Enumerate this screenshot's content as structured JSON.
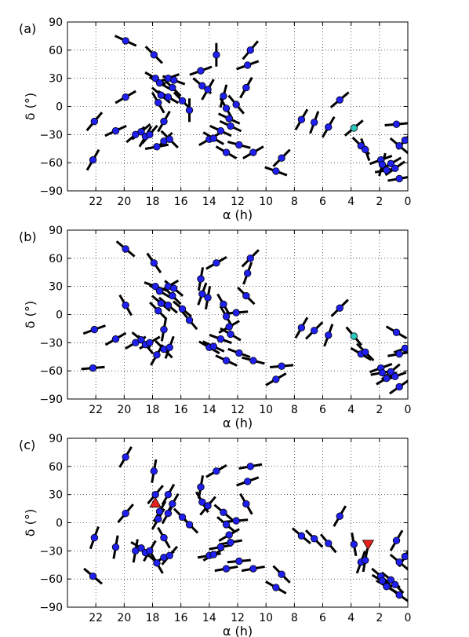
{
  "chart_data": [
    {
      "type": "scatter",
      "panel_label": "(a)",
      "xlabel": "α (h)",
      "ylabel": "δ (°)",
      "xlim": [
        24,
        0
      ],
      "ylim": [
        -90,
        90
      ],
      "xticks": [
        22,
        20,
        18,
        16,
        14,
        12,
        10,
        8,
        6,
        4,
        2,
        0
      ],
      "yticks": [
        90,
        60,
        30,
        0,
        -30,
        -60,
        -90
      ],
      "grid": true,
      "marker_color": "#1f1fef",
      "highlight_color": "#2cc7c0",
      "points": [
        {
          "x": 22.1,
          "y": -16,
          "a": 50
        },
        {
          "x": 22.2,
          "y": -57,
          "a": 60
        },
        {
          "x": 20.6,
          "y": -26,
          "a": 25
        },
        {
          "x": 19.9,
          "y": 70,
          "a": -25
        },
        {
          "x": 19.9,
          "y": 10,
          "a": 30
        },
        {
          "x": 19.2,
          "y": -30,
          "a": 40
        },
        {
          "x": 18.8,
          "y": -27,
          "a": 40
        },
        {
          "x": 18.5,
          "y": -32,
          "a": 60
        },
        {
          "x": 18.2,
          "y": -30,
          "a": 50
        },
        {
          "x": 17.9,
          "y": 55,
          "a": -45
        },
        {
          "x": 17.8,
          "y": 30,
          "a": -30
        },
        {
          "x": 17.6,
          "y": 4,
          "a": -60
        },
        {
          "x": 17.7,
          "y": -43,
          "a": 10
        },
        {
          "x": 17.5,
          "y": 25,
          "a": -30
        },
        {
          "x": 17.4,
          "y": 12,
          "a": -40
        },
        {
          "x": 17.2,
          "y": -37,
          "a": 45
        },
        {
          "x": 17.2,
          "y": -16,
          "a": 60
        },
        {
          "x": 16.9,
          "y": 30,
          "a": 20
        },
        {
          "x": 16.9,
          "y": 10,
          "a": -30
        },
        {
          "x": 16.8,
          "y": -35,
          "a": -45
        },
        {
          "x": 16.6,
          "y": 20,
          "a": -45
        },
        {
          "x": 16.5,
          "y": 28,
          "a": -20
        },
        {
          "x": 15.9,
          "y": 6,
          "a": -45
        },
        {
          "x": 15.4,
          "y": -4,
          "a": 90
        },
        {
          "x": 14.6,
          "y": 38,
          "a": 20
        },
        {
          "x": 14.5,
          "y": 22,
          "a": -40
        },
        {
          "x": 14.1,
          "y": 18,
          "a": 60
        },
        {
          "x": 14.0,
          "y": -35,
          "a": 30
        },
        {
          "x": 13.7,
          "y": -34,
          "a": -30
        },
        {
          "x": 13.5,
          "y": 55,
          "a": 90
        },
        {
          "x": 13.2,
          "y": -26,
          "a": -25
        },
        {
          "x": 13.0,
          "y": 11,
          "a": 75
        },
        {
          "x": 12.8,
          "y": -49,
          "a": -30
        },
        {
          "x": 12.8,
          "y": -2,
          "a": -60
        },
        {
          "x": 12.6,
          "y": -13,
          "a": -25
        },
        {
          "x": 12.5,
          "y": -21,
          "a": -25
        },
        {
          "x": 12.1,
          "y": 2,
          "a": -50
        },
        {
          "x": 11.9,
          "y": -41,
          "a": -15
        },
        {
          "x": 11.4,
          "y": 20,
          "a": 60
        },
        {
          "x": 11.3,
          "y": 44,
          "a": 20
        },
        {
          "x": 11.1,
          "y": 60,
          "a": 50
        },
        {
          "x": 10.9,
          "y": -49,
          "a": 30
        },
        {
          "x": 9.3,
          "y": -69,
          "a": -20
        },
        {
          "x": 8.9,
          "y": -55,
          "a": 45
        },
        {
          "x": 7.5,
          "y": -14,
          "a": 60
        },
        {
          "x": 6.6,
          "y": -17,
          "a": 70
        },
        {
          "x": 5.6,
          "y": -22,
          "a": 60
        },
        {
          "x": 4.8,
          "y": 7,
          "a": 40
        },
        {
          "x": 3.8,
          "y": -23,
          "a": 40,
          "hl": true
        },
        {
          "x": 3.3,
          "y": -42,
          "a": -45
        },
        {
          "x": 3.0,
          "y": -46,
          "a": -70
        },
        {
          "x": 1.9,
          "y": -57,
          "a": 20
        },
        {
          "x": 1.8,
          "y": -62,
          "a": 75
        },
        {
          "x": 1.5,
          "y": -68,
          "a": 10
        },
        {
          "x": 1.2,
          "y": -61,
          "a": 30
        },
        {
          "x": 0.9,
          "y": -66,
          "a": 35
        },
        {
          "x": 0.6,
          "y": -77,
          "a": 10
        },
        {
          "x": 0.8,
          "y": -19,
          "a": 5
        },
        {
          "x": 0.6,
          "y": -42,
          "a": -40
        },
        {
          "x": 0.2,
          "y": -36,
          "a": 50
        }
      ]
    },
    {
      "type": "scatter",
      "panel_label": "(b)",
      "xlabel": "α (h)",
      "ylabel": "δ (°)",
      "xlim": [
        24,
        0
      ],
      "ylim": [
        -90,
        90
      ],
      "xticks": [
        22,
        20,
        18,
        16,
        14,
        12,
        10,
        8,
        6,
        4,
        2,
        0
      ],
      "yticks": [
        90,
        60,
        30,
        0,
        -30,
        -60,
        -90
      ],
      "grid": true,
      "marker_color": "#1f1fef",
      "highlight_color": "#2cc7c0",
      "points": [
        {
          "x": 22.1,
          "y": -16,
          "a": 20
        },
        {
          "x": 22.2,
          "y": -57,
          "a": 5
        },
        {
          "x": 20.6,
          "y": -26,
          "a": 30
        },
        {
          "x": 19.9,
          "y": 70,
          "a": -40
        },
        {
          "x": 19.9,
          "y": 10,
          "a": -60
        },
        {
          "x": 19.2,
          "y": -30,
          "a": 30
        },
        {
          "x": 18.8,
          "y": -27,
          "a": -40
        },
        {
          "x": 18.5,
          "y": -32,
          "a": -50
        },
        {
          "x": 18.2,
          "y": -30,
          "a": 30
        },
        {
          "x": 17.9,
          "y": 55,
          "a": -55
        },
        {
          "x": 17.8,
          "y": 30,
          "a": -20
        },
        {
          "x": 17.6,
          "y": 4,
          "a": -45
        },
        {
          "x": 17.7,
          "y": -43,
          "a": 60
        },
        {
          "x": 17.5,
          "y": 25,
          "a": -30
        },
        {
          "x": 17.4,
          "y": 12,
          "a": -40
        },
        {
          "x": 17.2,
          "y": -37,
          "a": -45
        },
        {
          "x": 17.2,
          "y": -16,
          "a": 80
        },
        {
          "x": 16.9,
          "y": 30,
          "a": 30
        },
        {
          "x": 16.9,
          "y": 10,
          "a": -40
        },
        {
          "x": 16.8,
          "y": -35,
          "a": 70
        },
        {
          "x": 16.6,
          "y": 20,
          "a": -45
        },
        {
          "x": 16.5,
          "y": 28,
          "a": -40
        },
        {
          "x": 15.9,
          "y": 6,
          "a": -40
        },
        {
          "x": 15.4,
          "y": -6,
          "a": -50
        },
        {
          "x": 14.6,
          "y": 38,
          "a": 80
        },
        {
          "x": 14.5,
          "y": 22,
          "a": 70
        },
        {
          "x": 14.1,
          "y": 18,
          "a": 80
        },
        {
          "x": 14.0,
          "y": -35,
          "a": -30
        },
        {
          "x": 13.7,
          "y": -34,
          "a": -25
        },
        {
          "x": 13.5,
          "y": 55,
          "a": 30
        },
        {
          "x": 13.2,
          "y": -26,
          "a": -20
        },
        {
          "x": 13.0,
          "y": 11,
          "a": -60
        },
        {
          "x": 12.8,
          "y": -49,
          "a": -25
        },
        {
          "x": 12.8,
          "y": -2,
          "a": -60
        },
        {
          "x": 12.6,
          "y": -13,
          "a": 30
        },
        {
          "x": 12.5,
          "y": -21,
          "a": -30
        },
        {
          "x": 12.1,
          "y": 2,
          "a": 5
        },
        {
          "x": 11.9,
          "y": -41,
          "a": -20
        },
        {
          "x": 11.4,
          "y": 20,
          "a": -45
        },
        {
          "x": 11.3,
          "y": 44,
          "a": 70
        },
        {
          "x": 11.1,
          "y": 60,
          "a": 45
        },
        {
          "x": 10.9,
          "y": -49,
          "a": -15
        },
        {
          "x": 9.3,
          "y": -69,
          "a": 30
        },
        {
          "x": 8.9,
          "y": -55,
          "a": 5
        },
        {
          "x": 7.5,
          "y": -14,
          "a": 60
        },
        {
          "x": 6.6,
          "y": -17,
          "a": 45
        },
        {
          "x": 5.6,
          "y": -22,
          "a": 70
        },
        {
          "x": 4.8,
          "y": 7,
          "a": 45
        },
        {
          "x": 3.8,
          "y": -23,
          "a": -50,
          "hl": true
        },
        {
          "x": 3.3,
          "y": -42,
          "a": -30
        },
        {
          "x": 3.0,
          "y": -40,
          "a": -45
        },
        {
          "x": 1.9,
          "y": -57,
          "a": 20
        },
        {
          "x": 1.8,
          "y": -62,
          "a": 10
        },
        {
          "x": 1.5,
          "y": -68,
          "a": 30
        },
        {
          "x": 1.2,
          "y": -61,
          "a": 40
        },
        {
          "x": 0.9,
          "y": -66,
          "a": 20
        },
        {
          "x": 0.6,
          "y": -77,
          "a": 35
        },
        {
          "x": 0.8,
          "y": -19,
          "a": -30
        },
        {
          "x": 0.6,
          "y": -42,
          "a": 10
        },
        {
          "x": 0.2,
          "y": -36,
          "a": 20
        }
      ]
    },
    {
      "type": "scatter",
      "panel_label": "(c)",
      "xlabel": "α (h)",
      "ylabel": "δ (°)",
      "xlim": [
        24,
        0
      ],
      "ylim": [
        -90,
        90
      ],
      "xticks": [
        22,
        20,
        18,
        16,
        14,
        12,
        10,
        8,
        6,
        4,
        2,
        0
      ],
      "yticks": [
        90,
        60,
        30,
        0,
        -30,
        -60,
        -90
      ],
      "grid": true,
      "marker_color": "#1f1fef",
      "highlight_color": "#2cc7c0",
      "triangle_color": "#e8201c",
      "triangles": [
        {
          "x": 17.8,
          "y": 21,
          "dir": "up"
        },
        {
          "x": 2.8,
          "y": -23,
          "dir": "down"
        }
      ],
      "points": [
        {
          "x": 22.1,
          "y": -16,
          "a": 70
        },
        {
          "x": 22.2,
          "y": -57,
          "a": -40
        },
        {
          "x": 20.6,
          "y": -26,
          "a": 80
        },
        {
          "x": 19.9,
          "y": 70,
          "a": 60
        },
        {
          "x": 19.9,
          "y": 10,
          "a": 50
        },
        {
          "x": 19.2,
          "y": -30,
          "a": 80
        },
        {
          "x": 18.8,
          "y": -27,
          "a": -30
        },
        {
          "x": 18.5,
          "y": -32,
          "a": -40
        },
        {
          "x": 18.2,
          "y": -30,
          "a": 60
        },
        {
          "x": 17.9,
          "y": 55,
          "a": 80
        },
        {
          "x": 17.8,
          "y": 30,
          "a": 50
        },
        {
          "x": 17.6,
          "y": 4,
          "a": 60
        },
        {
          "x": 17.7,
          "y": -43,
          "a": -60
        },
        {
          "x": 17.5,
          "y": 12,
          "a": 60
        },
        {
          "x": 17.2,
          "y": -37,
          "a": 30
        },
        {
          "x": 17.2,
          "y": -16,
          "a": -60
        },
        {
          "x": 16.9,
          "y": 30,
          "a": 60
        },
        {
          "x": 16.9,
          "y": 10,
          "a": 60
        },
        {
          "x": 16.8,
          "y": -35,
          "a": 50
        },
        {
          "x": 16.6,
          "y": 20,
          "a": 60
        },
        {
          "x": 15.9,
          "y": 6,
          "a": -45
        },
        {
          "x": 15.4,
          "y": -2,
          "a": -45
        },
        {
          "x": 14.6,
          "y": 38,
          "a": 80
        },
        {
          "x": 14.5,
          "y": 22,
          "a": -60
        },
        {
          "x": 14.1,
          "y": 18,
          "a": 50
        },
        {
          "x": 14.0,
          "y": -35,
          "a": 10
        },
        {
          "x": 13.7,
          "y": -34,
          "a": 30
        },
        {
          "x": 13.5,
          "y": 55,
          "a": 30
        },
        {
          "x": 13.2,
          "y": -26,
          "a": 10
        },
        {
          "x": 13.0,
          "y": 11,
          "a": -40
        },
        {
          "x": 12.8,
          "y": -49,
          "a": 10
        },
        {
          "x": 12.8,
          "y": -2,
          "a": -40
        },
        {
          "x": 12.6,
          "y": -13,
          "a": 30
        },
        {
          "x": 12.5,
          "y": -21,
          "a": 10
        },
        {
          "x": 12.1,
          "y": 2,
          "a": 5
        },
        {
          "x": 11.9,
          "y": -41,
          "a": 5
        },
        {
          "x": 11.4,
          "y": 20,
          "a": -60
        },
        {
          "x": 11.3,
          "y": 44,
          "a": 20
        },
        {
          "x": 11.1,
          "y": 60,
          "a": 10
        },
        {
          "x": 10.9,
          "y": -49,
          "a": 10
        },
        {
          "x": 9.3,
          "y": -69,
          "a": -30
        },
        {
          "x": 8.9,
          "y": -55,
          "a": -45
        },
        {
          "x": 7.5,
          "y": -14,
          "a": -40
        },
        {
          "x": 6.6,
          "y": -17,
          "a": -45
        },
        {
          "x": 5.6,
          "y": -22,
          "a": -50
        },
        {
          "x": 4.8,
          "y": 7,
          "a": 60
        },
        {
          "x": 3.8,
          "y": -23,
          "a": -80
        },
        {
          "x": 3.3,
          "y": -42,
          "a": 70
        },
        {
          "x": 3.0,
          "y": -40,
          "a": 80
        },
        {
          "x": 1.9,
          "y": -57,
          "a": -40
        },
        {
          "x": 1.8,
          "y": -62,
          "a": -30
        },
        {
          "x": 1.5,
          "y": -68,
          "a": -30
        },
        {
          "x": 1.2,
          "y": -61,
          "a": -40
        },
        {
          "x": 0.9,
          "y": -66,
          "a": -45
        },
        {
          "x": 0.6,
          "y": -77,
          "a": -35
        },
        {
          "x": 0.8,
          "y": -19,
          "a": 60
        },
        {
          "x": 0.6,
          "y": -42,
          "a": -40
        },
        {
          "x": 0.2,
          "y": -36,
          "a": 60
        }
      ]
    }
  ]
}
